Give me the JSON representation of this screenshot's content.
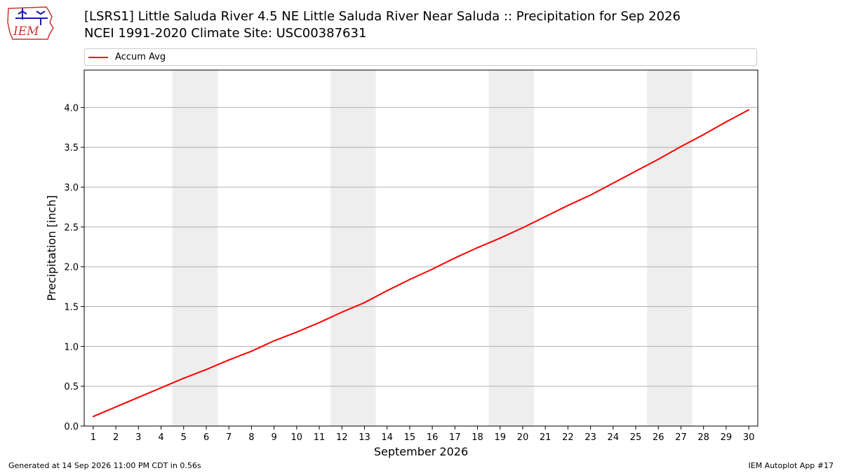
{
  "header": {
    "title_line1": "[LSRS1] Little Saluda River 4.5 NE Little Saluda River Near Saluda :: Precipitation for Sep 2026",
    "title_line2": "NCEI 1991-2020 Climate Site: USC00387631",
    "logo_text": "IEM"
  },
  "footer": {
    "generated": "Generated at 14 Sep 2026 11:00 PM CDT in 0.56s",
    "app": "IEM Autoplot App #17"
  },
  "colors": {
    "line": "#ff0000",
    "weekend_band": "#eeeeee",
    "grid": "#b0b0b0",
    "logo_outline": "#cc3333",
    "logo_icon": "#1a1aa8"
  },
  "chart_data": {
    "type": "line",
    "title": "[LSRS1] Little Saluda River 4.5 NE Little Saluda River Near Saluda :: Precipitation for Sep 2026",
    "xlabel": "September 2026",
    "ylabel": "Precipitation [inch]",
    "x": [
      1,
      2,
      3,
      4,
      5,
      6,
      7,
      8,
      9,
      10,
      11,
      12,
      13,
      14,
      15,
      16,
      17,
      18,
      19,
      20,
      21,
      22,
      23,
      24,
      25,
      26,
      27,
      28,
      29,
      30
    ],
    "series": [
      {
        "name": "Accum Avg",
        "color": "#ff0000",
        "values": [
          0.12,
          0.24,
          0.36,
          0.48,
          0.6,
          0.71,
          0.83,
          0.94,
          1.07,
          1.18,
          1.3,
          1.43,
          1.55,
          1.7,
          1.84,
          1.97,
          2.11,
          2.24,
          2.36,
          2.49,
          2.63,
          2.77,
          2.9,
          3.05,
          3.2,
          3.35,
          3.51,
          3.66,
          3.82,
          3.97
        ]
      }
    ],
    "xlim": [
      0.6,
      30.4
    ],
    "ylim": [
      0,
      4.47
    ],
    "yticks": [
      0.0,
      0.5,
      1.0,
      1.5,
      2.0,
      2.5,
      3.0,
      3.5,
      4.0
    ],
    "xticks": [
      1,
      2,
      3,
      4,
      5,
      6,
      7,
      8,
      9,
      10,
      11,
      12,
      13,
      14,
      15,
      16,
      17,
      18,
      19,
      20,
      21,
      22,
      23,
      24,
      25,
      26,
      27,
      28,
      29,
      30
    ],
    "weekend_bands": [
      [
        4.5,
        6.5
      ],
      [
        11.5,
        13.5
      ],
      [
        18.5,
        20.5
      ],
      [
        25.5,
        27.5
      ]
    ],
    "grid": "horizontal",
    "legend_position": "top"
  }
}
